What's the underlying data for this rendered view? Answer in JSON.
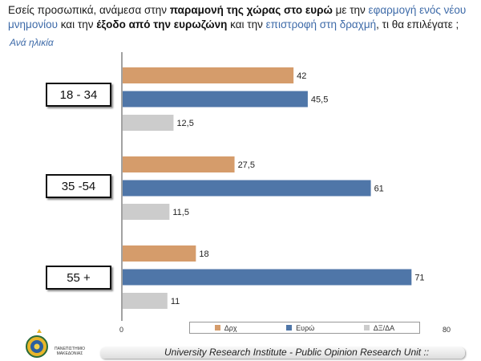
{
  "question": {
    "part1": "Εσείς προσωπικά, ανάμεσα στην ",
    "bold1": "παραμονή της χώρας στο ευρώ",
    "part2": " με την ",
    "hl1": "εφαρμογή ενός νέου μνημονίου",
    "part3": " και την ",
    "bold2": "έξοδο από την ευρωζώνη",
    "part4": " και την ",
    "hl2": "επιστροφή στη δραχμή",
    "part5": ", τι θα επιλέγατε ;"
  },
  "subtitle": "Ανά ηλικία",
  "footer": "University Research Institute - Public Opinion Research Unit ::",
  "logo_text": "ΠΑΝΕΠΙΣΤΗΜΙΟ ΜΑΚΕΔΟΝΙΑΣ",
  "colors": {
    "drx": "#d59c6b",
    "euro": "#4f76a8",
    "dk": "#cccccc",
    "highlight": "#3d6aa8"
  },
  "chart_data": {
    "type": "bar",
    "orientation": "horizontal",
    "categories": [
      "18 - 34",
      "35 -54",
      "55 +"
    ],
    "series": [
      {
        "name": "Δρχ",
        "values": [
          42,
          27.5,
          18
        ],
        "labels": [
          "42",
          "27,5",
          "18"
        ]
      },
      {
        "name": "Ευρώ",
        "values": [
          45.5,
          61,
          71
        ],
        "labels": [
          "45,5",
          "61",
          "71"
        ]
      },
      {
        "name": "ΔΞ/ΔΑ",
        "values": [
          12.5,
          11.5,
          11
        ],
        "labels": [
          "12,5",
          "11,5",
          "11"
        ]
      }
    ],
    "xlim": [
      0,
      80
    ],
    "x_ticks": [
      "0",
      "80"
    ],
    "legend_position": "bottom",
    "grid": false
  }
}
